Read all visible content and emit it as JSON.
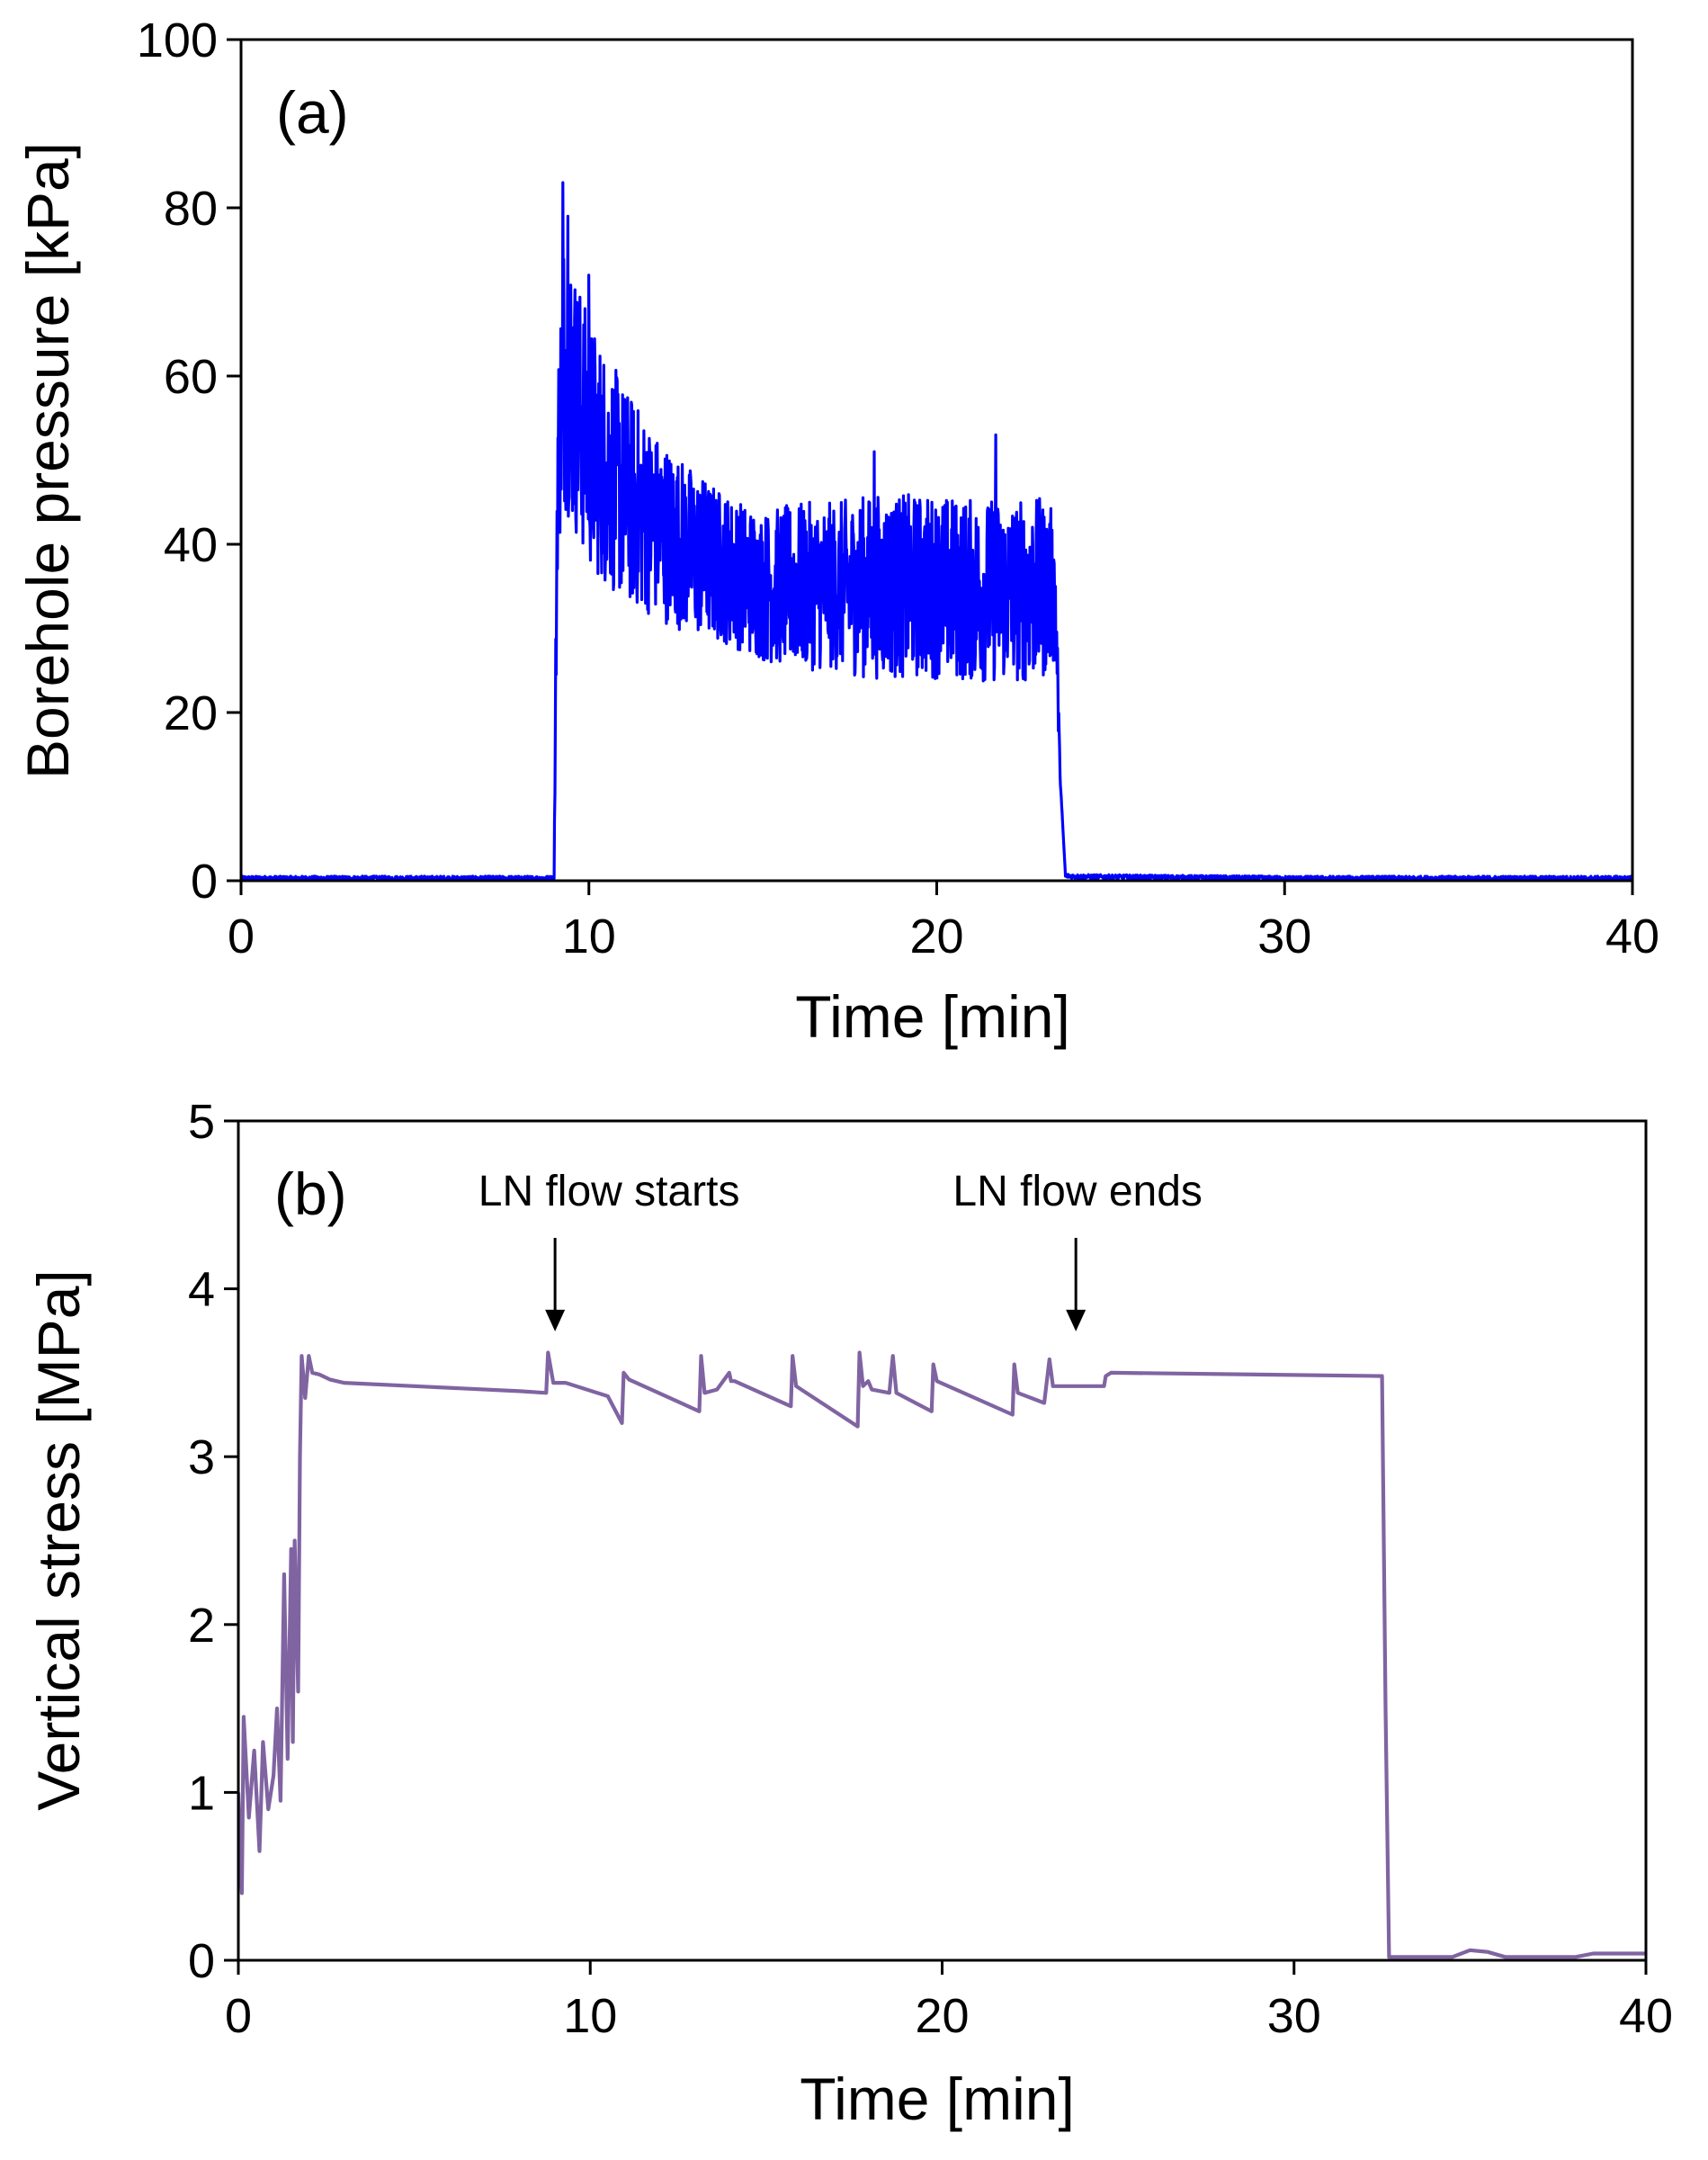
{
  "chart_data": [
    {
      "type": "line",
      "panel_label": "(a)",
      "title": "",
      "xlabel": "Time [min]",
      "ylabel": "Borehole pressure [kPa]",
      "xlim": [
        0,
        40
      ],
      "ylim": [
        0,
        100
      ],
      "xticks": [
        0,
        10,
        20,
        30,
        40
      ],
      "yticks": [
        0,
        20,
        40,
        60,
        80,
        100
      ],
      "grid": false,
      "series": [
        {
          "name": "Borehole pressure",
          "color": "#0000ff",
          "style": "noisy",
          "x": [
            0,
            9.0,
            9.1,
            9.3,
            9.6,
            10.0,
            10.5,
            11.0,
            12.0,
            13.0,
            14.0,
            15.0,
            16.0,
            17.0,
            18.0,
            19.0,
            20.0,
            21.0,
            22.0,
            23.0,
            23.4,
            23.55,
            23.7,
            24.0,
            30.0,
            40.0
          ],
          "y": [
            0.3,
            0.3,
            50,
            62,
            57,
            52,
            49,
            46,
            42,
            39,
            37,
            35,
            35,
            35,
            35,
            35,
            35,
            34.5,
            34.5,
            34.5,
            35,
            12,
            0.6,
            0.5,
            0.3,
            0.3
          ],
          "noise_amplitude": [
            0,
            0,
            12,
            18,
            16,
            15,
            14,
            13,
            11,
            10,
            9,
            9,
            10,
            10,
            11,
            11,
            11,
            11,
            11,
            11,
            9,
            0,
            0,
            0,
            0,
            0
          ],
          "peaks": [
            {
              "x": 9.25,
              "y": 83
            },
            {
              "x": 9.4,
              "y": 79
            },
            {
              "x": 10.0,
              "y": 72
            },
            {
              "x": 18.2,
              "y": 51
            },
            {
              "x": 21.7,
              "y": 53
            }
          ]
        }
      ]
    },
    {
      "type": "line",
      "panel_label": "(b)",
      "title": "",
      "xlabel": "Time [min]",
      "ylabel": "Vertical stress [MPa]",
      "xlim": [
        0,
        40
      ],
      "ylim": [
        0,
        5
      ],
      "xticks": [
        0,
        10,
        20,
        30,
        40
      ],
      "yticks": [
        0,
        1,
        2,
        3,
        4,
        5
      ],
      "grid": false,
      "series": [
        {
          "name": "Vertical stress",
          "color": "#8064a2",
          "style": "line",
          "x": [
            0,
            0.1,
            0.15,
            0.3,
            0.45,
            0.6,
            0.7,
            0.85,
            1.0,
            1.1,
            1.2,
            1.3,
            1.4,
            1.5,
            1.55,
            1.6,
            1.7,
            1.75,
            1.8,
            1.9,
            2.0,
            2.1,
            2.3,
            2.6,
            3.0,
            5.0,
            8.0,
            8.75,
            8.8,
            8.95,
            9.3,
            10.5,
            10.9,
            10.95,
            11.1,
            13.1,
            13.15,
            13.25,
            13.6,
            13.95,
            14.0,
            14.1,
            15.7,
            15.75,
            15.85,
            17.6,
            17.65,
            17.75,
            17.9,
            18.0,
            18.5,
            18.6,
            18.7,
            19.7,
            19.75,
            19.85,
            22.0,
            22.05,
            22.15,
            22.9,
            23.05,
            23.15,
            24.6,
            24.65,
            24.8,
            32.5,
            32.6,
            32.7,
            34.5,
            35.0,
            35.5,
            36.0,
            38.0,
            38.5,
            40.0
          ],
          "y": [
            1.0,
            0.4,
            1.45,
            0.85,
            1.25,
            0.65,
            1.3,
            0.9,
            1.1,
            1.5,
            0.95,
            2.3,
            1.2,
            2.45,
            1.3,
            2.5,
            1.6,
            3.0,
            3.6,
            3.35,
            3.6,
            3.5,
            3.49,
            3.46,
            3.44,
            3.42,
            3.39,
            3.38,
            3.62,
            3.44,
            3.44,
            3.36,
            3.2,
            3.5,
            3.46,
            3.27,
            3.6,
            3.38,
            3.4,
            3.5,
            3.45,
            3.45,
            3.3,
            3.6,
            3.42,
            3.18,
            3.62,
            3.42,
            3.45,
            3.4,
            3.38,
            3.6,
            3.38,
            3.27,
            3.55,
            3.45,
            3.25,
            3.55,
            3.38,
            3.32,
            3.58,
            3.42,
            3.42,
            3.48,
            3.5,
            3.48,
            1.5,
            0.02,
            0.02,
            0.06,
            0.05,
            0.02,
            0.02,
            0.04,
            0.04
          ]
        }
      ],
      "annotations": [
        {
          "text": "LN flow starts",
          "x": 9.0,
          "arrow_tip_y": 3.8
        },
        {
          "text": "LN flow ends",
          "x": 23.8,
          "arrow_tip_y": 3.8
        }
      ]
    }
  ]
}
